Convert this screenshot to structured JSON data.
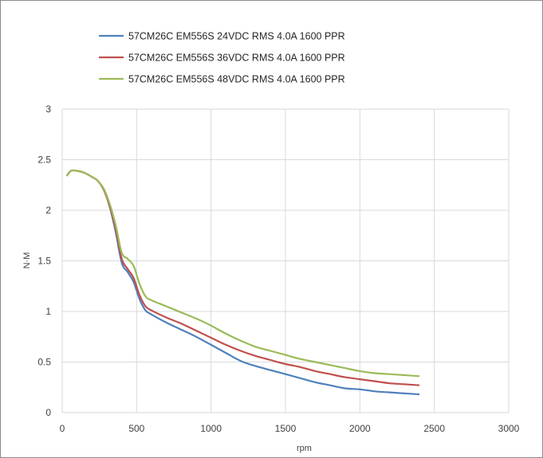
{
  "chart_data": {
    "type": "line",
    "xlabel": "rpm",
    "ylabel": "N·M",
    "xlim": [
      0,
      3000
    ],
    "ylim": [
      0,
      3
    ],
    "xticks": [
      "0",
      "500",
      "1000",
      "1500",
      "2000",
      "2500",
      "3000"
    ],
    "yticks": [
      "0",
      "0.5",
      "1",
      "1.5",
      "2",
      "2.5",
      "3"
    ],
    "grid": true,
    "legend_position": "top-left",
    "series": [
      {
        "name": "57CM26C EM556S 24VDC RMS 4.0A 1600 PPR",
        "color": "#4f81bd",
        "x": [
          30,
          60,
          100,
          150,
          200,
          240,
          280,
          320,
          360,
          400,
          440,
          480,
          520,
          560,
          600,
          700,
          800,
          900,
          1000,
          1100,
          1200,
          1300,
          1400,
          1500,
          1600,
          1700,
          1800,
          1900,
          2000,
          2100,
          2200,
          2300,
          2400
        ],
        "y": [
          2.34,
          2.39,
          2.39,
          2.37,
          2.33,
          2.29,
          2.2,
          2.03,
          1.78,
          1.48,
          1.39,
          1.29,
          1.12,
          1.01,
          0.97,
          0.89,
          0.82,
          0.75,
          0.67,
          0.59,
          0.51,
          0.46,
          0.42,
          0.38,
          0.34,
          0.3,
          0.27,
          0.24,
          0.23,
          0.21,
          0.2,
          0.19,
          0.18
        ]
      },
      {
        "name": "57CM26C EM556S 36VDC RMS 4.0A 1600 PPR",
        "color": "#c0504d",
        "x": [
          30,
          60,
          100,
          150,
          200,
          240,
          280,
          320,
          360,
          400,
          440,
          480,
          520,
          560,
          600,
          700,
          800,
          900,
          1000,
          1100,
          1200,
          1300,
          1400,
          1500,
          1600,
          1700,
          1800,
          1900,
          2000,
          2100,
          2200,
          2300,
          2400
        ],
        "y": [
          2.34,
          2.39,
          2.39,
          2.37,
          2.33,
          2.29,
          2.2,
          2.04,
          1.81,
          1.52,
          1.42,
          1.33,
          1.16,
          1.05,
          1.01,
          0.94,
          0.88,
          0.81,
          0.74,
          0.67,
          0.61,
          0.56,
          0.52,
          0.48,
          0.45,
          0.41,
          0.38,
          0.35,
          0.33,
          0.31,
          0.29,
          0.28,
          0.27
        ]
      },
      {
        "name": "57CM26C EM556S 48VDC RMS 4.0A 1600 PPR",
        "color": "#9bbb59",
        "x": [
          30,
          60,
          100,
          150,
          200,
          240,
          280,
          320,
          360,
          400,
          440,
          480,
          520,
          560,
          600,
          700,
          800,
          900,
          1000,
          1100,
          1200,
          1300,
          1400,
          1500,
          1600,
          1700,
          1800,
          1900,
          2000,
          2100,
          2200,
          2300,
          2400
        ],
        "y": [
          2.34,
          2.39,
          2.39,
          2.37,
          2.33,
          2.29,
          2.21,
          2.06,
          1.85,
          1.58,
          1.52,
          1.45,
          1.27,
          1.15,
          1.11,
          1.05,
          0.99,
          0.93,
          0.86,
          0.78,
          0.71,
          0.65,
          0.61,
          0.57,
          0.53,
          0.5,
          0.47,
          0.44,
          0.41,
          0.39,
          0.38,
          0.37,
          0.36
        ]
      }
    ]
  }
}
